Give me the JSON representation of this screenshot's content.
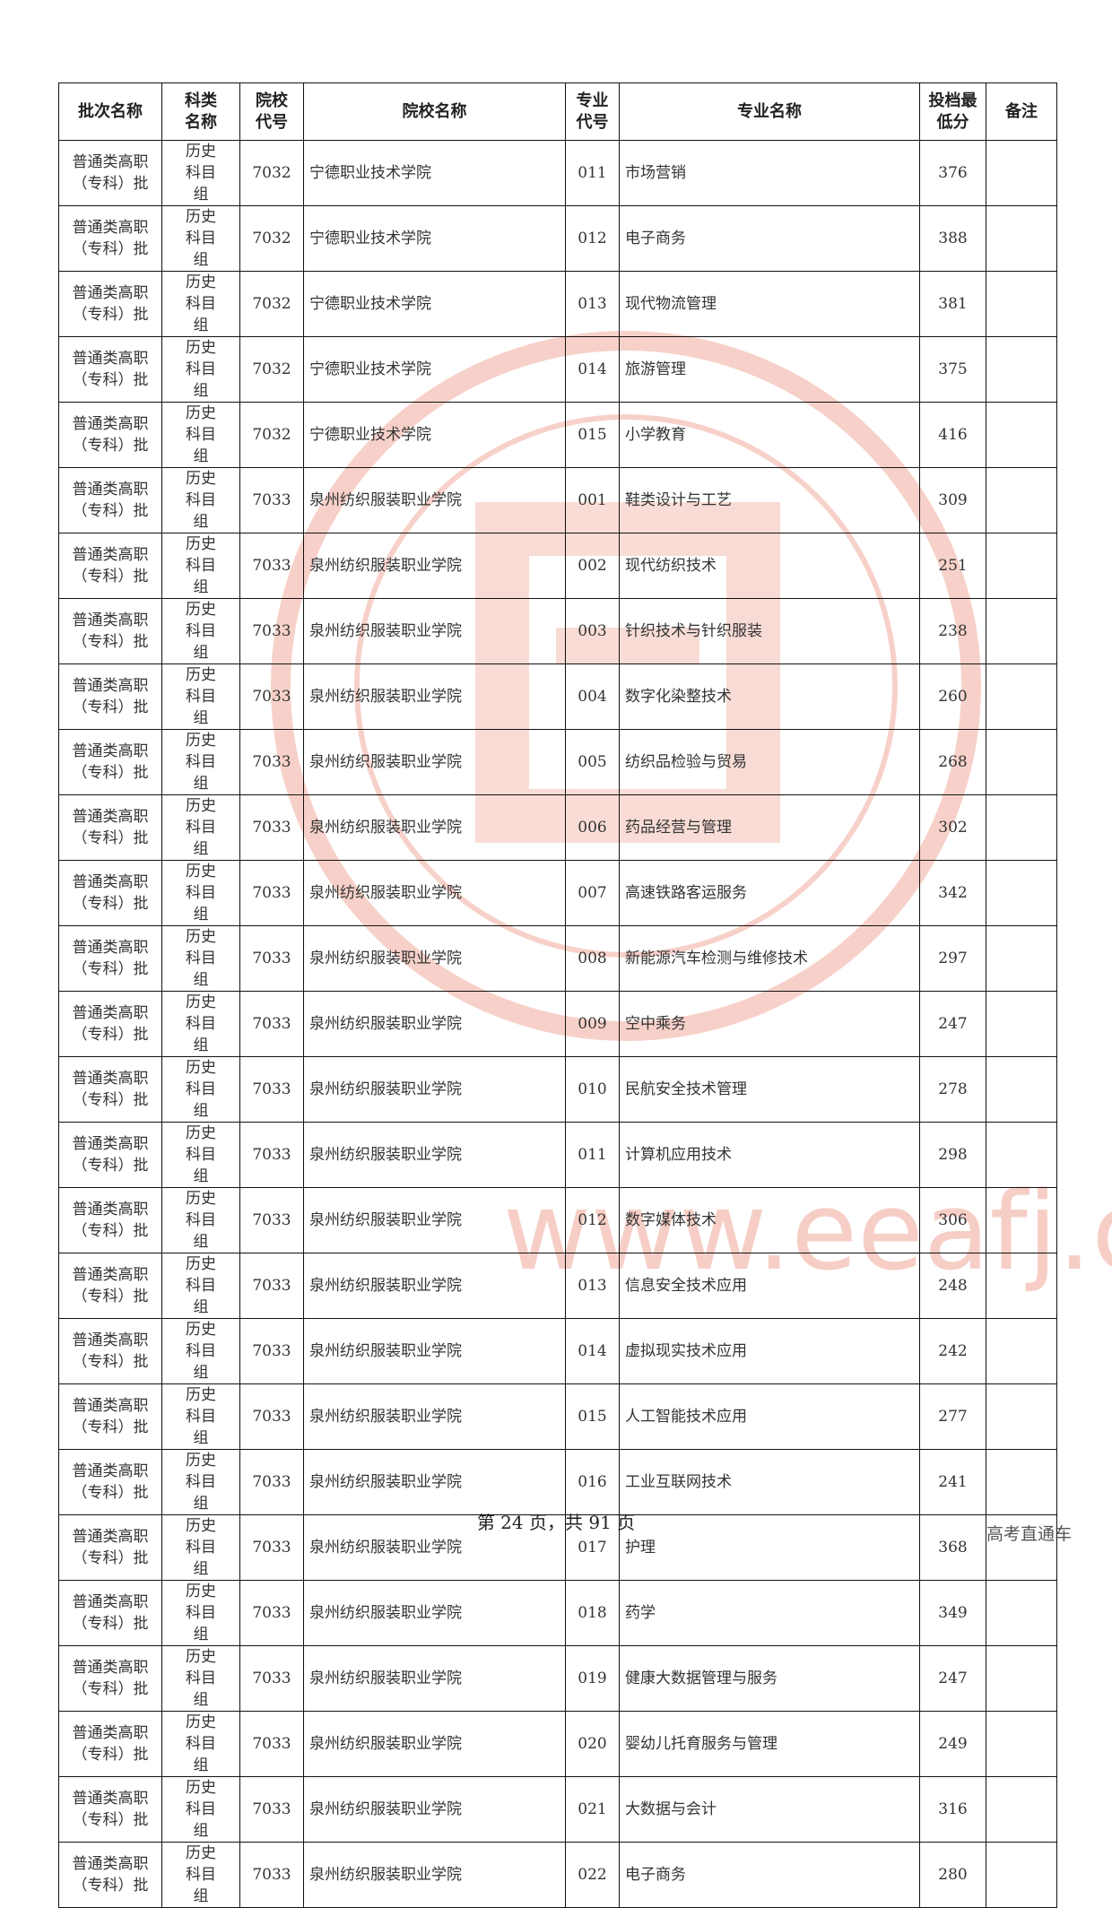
{
  "header": {
    "batch": "批次名称",
    "subject": "科类名称",
    "school_code": "院校代号",
    "school_name": "院校名称",
    "major_code": "专业代号",
    "major_name": "专业名称",
    "min_score": "投档最低分",
    "note": "备注"
  },
  "rows": [
    {
      "batch": "普通类高职（专科）批",
      "subject": "历史科目组",
      "school_code": "7032",
      "school_name": "宁德职业技术学院",
      "major_code": "011",
      "major_name": "市场营销",
      "min_score": "376",
      "note": ""
    },
    {
      "batch": "普通类高职（专科）批",
      "subject": "历史科目组",
      "school_code": "7032",
      "school_name": "宁德职业技术学院",
      "major_code": "012",
      "major_name": "电子商务",
      "min_score": "388",
      "note": ""
    },
    {
      "batch": "普通类高职（专科）批",
      "subject": "历史科目组",
      "school_code": "7032",
      "school_name": "宁德职业技术学院",
      "major_code": "013",
      "major_name": "现代物流管理",
      "min_score": "381",
      "note": ""
    },
    {
      "batch": "普通类高职（专科）批",
      "subject": "历史科目组",
      "school_code": "7032",
      "school_name": "宁德职业技术学院",
      "major_code": "014",
      "major_name": "旅游管理",
      "min_score": "375",
      "note": ""
    },
    {
      "batch": "普通类高职（专科）批",
      "subject": "历史科目组",
      "school_code": "7032",
      "school_name": "宁德职业技术学院",
      "major_code": "015",
      "major_name": "小学教育",
      "min_score": "416",
      "note": ""
    },
    {
      "batch": "普通类高职（专科）批",
      "subject": "历史科目组",
      "school_code": "7033",
      "school_name": "泉州纺织服装职业学院",
      "major_code": "001",
      "major_name": "鞋类设计与工艺",
      "min_score": "309",
      "note": ""
    },
    {
      "batch": "普通类高职（专科）批",
      "subject": "历史科目组",
      "school_code": "7033",
      "school_name": "泉州纺织服装职业学院",
      "major_code": "002",
      "major_name": "现代纺织技术",
      "min_score": "251",
      "note": ""
    },
    {
      "batch": "普通类高职（专科）批",
      "subject": "历史科目组",
      "school_code": "7033",
      "school_name": "泉州纺织服装职业学院",
      "major_code": "003",
      "major_name": "针织技术与针织服装",
      "min_score": "238",
      "note": ""
    },
    {
      "batch": "普通类高职（专科）批",
      "subject": "历史科目组",
      "school_code": "7033",
      "school_name": "泉州纺织服装职业学院",
      "major_code": "004",
      "major_name": "数字化染整技术",
      "min_score": "260",
      "note": ""
    },
    {
      "batch": "普通类高职（专科）批",
      "subject": "历史科目组",
      "school_code": "7033",
      "school_name": "泉州纺织服装职业学院",
      "major_code": "005",
      "major_name": "纺织品检验与贸易",
      "min_score": "268",
      "note": ""
    },
    {
      "batch": "普通类高职（专科）批",
      "subject": "历史科目组",
      "school_code": "7033",
      "school_name": "泉州纺织服装职业学院",
      "major_code": "006",
      "major_name": "药品经营与管理",
      "min_score": "302",
      "note": ""
    },
    {
      "batch": "普通类高职（专科）批",
      "subject": "历史科目组",
      "school_code": "7033",
      "school_name": "泉州纺织服装职业学院",
      "major_code": "007",
      "major_name": "高速铁路客运服务",
      "min_score": "342",
      "note": ""
    },
    {
      "batch": "普通类高职（专科）批",
      "subject": "历史科目组",
      "school_code": "7033",
      "school_name": "泉州纺织服装职业学院",
      "major_code": "008",
      "major_name": "新能源汽车检测与维修技术",
      "min_score": "297",
      "note": ""
    },
    {
      "batch": "普通类高职（专科）批",
      "subject": "历史科目组",
      "school_code": "7033",
      "school_name": "泉州纺织服装职业学院",
      "major_code": "009",
      "major_name": "空中乘务",
      "min_score": "247",
      "note": ""
    },
    {
      "batch": "普通类高职（专科）批",
      "subject": "历史科目组",
      "school_code": "7033",
      "school_name": "泉州纺织服装职业学院",
      "major_code": "010",
      "major_name": "民航安全技术管理",
      "min_score": "278",
      "note": ""
    },
    {
      "batch": "普通类高职（专科）批",
      "subject": "历史科目组",
      "school_code": "7033",
      "school_name": "泉州纺织服装职业学院",
      "major_code": "011",
      "major_name": "计算机应用技术",
      "min_score": "298",
      "note": ""
    },
    {
      "batch": "普通类高职（专科）批",
      "subject": "历史科目组",
      "school_code": "7033",
      "school_name": "泉州纺织服装职业学院",
      "major_code": "012",
      "major_name": "数字媒体技术",
      "min_score": "306",
      "note": ""
    },
    {
      "batch": "普通类高职（专科）批",
      "subject": "历史科目组",
      "school_code": "7033",
      "school_name": "泉州纺织服装职业学院",
      "major_code": "013",
      "major_name": "信息安全技术应用",
      "min_score": "248",
      "note": ""
    },
    {
      "batch": "普通类高职（专科）批",
      "subject": "历史科目组",
      "school_code": "7033",
      "school_name": "泉州纺织服装职业学院",
      "major_code": "014",
      "major_name": "虚拟现实技术应用",
      "min_score": "242",
      "note": ""
    },
    {
      "batch": "普通类高职（专科）批",
      "subject": "历史科目组",
      "school_code": "7033",
      "school_name": "泉州纺织服装职业学院",
      "major_code": "015",
      "major_name": "人工智能技术应用",
      "min_score": "277",
      "note": ""
    },
    {
      "batch": "普通类高职（专科）批",
      "subject": "历史科目组",
      "school_code": "7033",
      "school_name": "泉州纺织服装职业学院",
      "major_code": "016",
      "major_name": "工业互联网技术",
      "min_score": "241",
      "note": ""
    },
    {
      "batch": "普通类高职（专科）批",
      "subject": "历史科目组",
      "school_code": "7033",
      "school_name": "泉州纺织服装职业学院",
      "major_code": "017",
      "major_name": "护理",
      "min_score": "368",
      "note": ""
    },
    {
      "batch": "普通类高职（专科）批",
      "subject": "历史科目组",
      "school_code": "7033",
      "school_name": "泉州纺织服装职业学院",
      "major_code": "018",
      "major_name": "药学",
      "min_score": "349",
      "note": ""
    },
    {
      "batch": "普通类高职（专科）批",
      "subject": "历史科目组",
      "school_code": "7033",
      "school_name": "泉州纺织服装职业学院",
      "major_code": "019",
      "major_name": "健康大数据管理与服务",
      "min_score": "247",
      "note": ""
    },
    {
      "batch": "普通类高职（专科）批",
      "subject": "历史科目组",
      "school_code": "7033",
      "school_name": "泉州纺织服装职业学院",
      "major_code": "020",
      "major_name": "婴幼儿托育服务与管理",
      "min_score": "249",
      "note": ""
    },
    {
      "batch": "普通类高职（专科）批",
      "subject": "历史科目组",
      "school_code": "7033",
      "school_name": "泉州纺织服装职业学院",
      "major_code": "021",
      "major_name": "大数据与会计",
      "min_score": "316",
      "note": ""
    },
    {
      "batch": "普通类高职（专科）批",
      "subject": "历史科目组",
      "school_code": "7033",
      "school_name": "泉州纺织服装职业学院",
      "major_code": "022",
      "major_name": "电子商务",
      "min_score": "280",
      "note": ""
    }
  ],
  "footer": {
    "page_info": "第 24 页，共 91 页"
  },
  "brand": "高考直通车",
  "watermark": {
    "text": "www.eeafj.cn",
    "color": "#f3b5aa"
  }
}
